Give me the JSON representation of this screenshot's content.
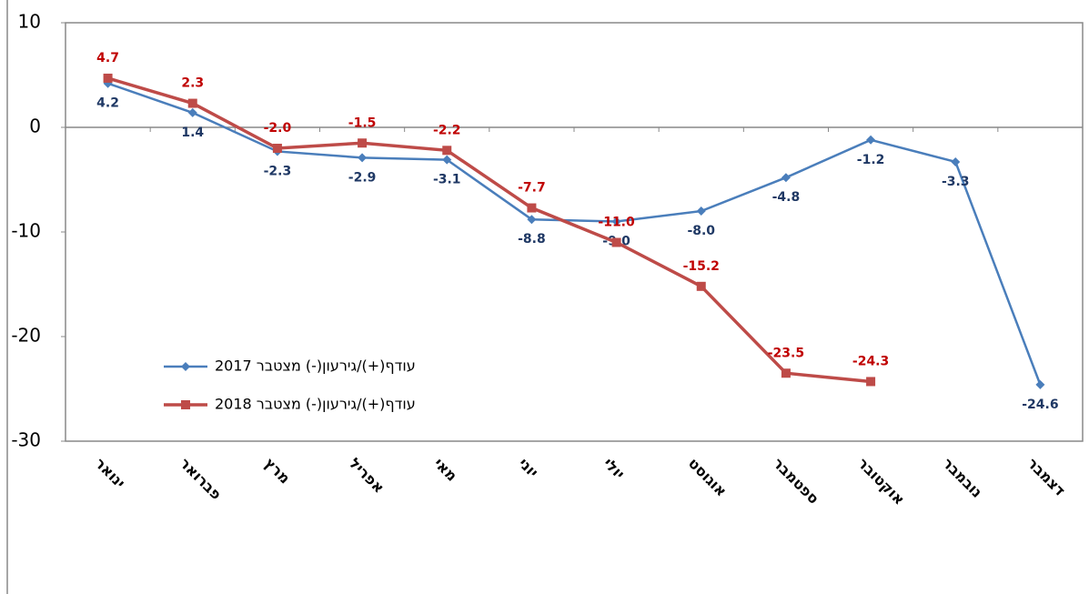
{
  "chart_data": {
    "type": "line",
    "categories": [
      "ינואר",
      "פברואר",
      "מרץ",
      "אפריל",
      "מאי",
      "יוני",
      "יולי",
      "אוגוסט",
      "ספטמבר",
      "אוקטובר",
      "נובמבר",
      "דצמבר"
    ],
    "series": [
      {
        "name": "עודף(+)/גירעון(-) מצטבר 2017",
        "color": "#4a7ebb",
        "label_color": "#1f3864",
        "marker": "diamond",
        "values": [
          4.2,
          1.4,
          -2.3,
          -2.9,
          -3.1,
          -8.8,
          -9.0,
          -8.0,
          -4.8,
          -1.2,
          -3.3,
          -24.6
        ],
        "value_labels": [
          "4.2",
          "1.4",
          "-2.3",
          "-2.9",
          "-3.1",
          "-8.8",
          "-9.0",
          "-8.0",
          "-4.8",
          "-1.2",
          "-3.3",
          "-24.6"
        ]
      },
      {
        "name": "עודף(+)/גירעון(-) מצטבר 2018",
        "color": "#be4b48",
        "label_color": "#c00000",
        "marker": "square",
        "values": [
          4.7,
          2.3,
          -2.0,
          -1.5,
          -2.2,
          -7.7,
          -11.0,
          -15.2,
          -23.5,
          -24.3,
          null,
          null
        ],
        "value_labels": [
          "4.7",
          "2.3",
          "-2.0",
          "-1.5",
          "-2.2",
          "-7.7",
          "-11.0",
          "-15.2",
          "-23.5",
          "-24.3",
          null,
          null
        ]
      }
    ],
    "ylim": [
      -30,
      10
    ],
    "yticks": [
      10,
      0,
      -10,
      -20,
      -30
    ],
    "grid": false
  }
}
